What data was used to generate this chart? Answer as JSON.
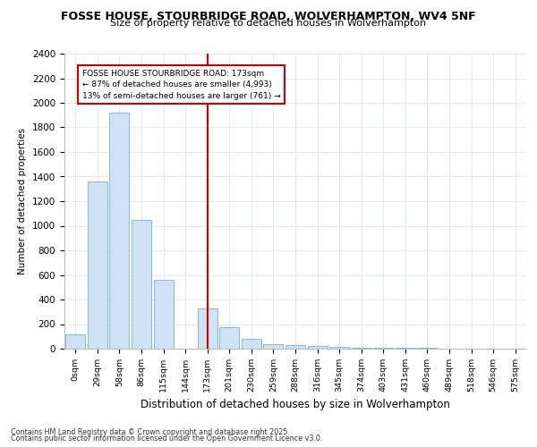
{
  "title": "FOSSE HOUSE, STOURBRIDGE ROAD, WOLVERHAMPTON, WV4 5NF",
  "subtitle": "Size of property relative to detached houses in Wolverhampton",
  "xlabel": "Distribution of detached houses by size in Wolverhampton",
  "ylabel": "Number of detached properties",
  "bar_labels": [
    "0sqm",
    "29sqm",
    "58sqm",
    "86sqm",
    "115sqm",
    "144sqm",
    "173sqm",
    "201sqm",
    "230sqm",
    "259sqm",
    "288sqm",
    "316sqm",
    "345sqm",
    "374sqm",
    "403sqm",
    "431sqm",
    "460sqm",
    "489sqm",
    "518sqm",
    "546sqm",
    "575sqm"
  ],
  "bar_values": [
    120,
    1360,
    1920,
    1050,
    560,
    0,
    330,
    175,
    80,
    40,
    30,
    20,
    15,
    10,
    8,
    5,
    5,
    3,
    0,
    2,
    2
  ],
  "bar_color": "#cfe2f3",
  "bar_edge_color": "#7aade0",
  "property_bin_index": 6,
  "annotation_title": "FOSSE HOUSE STOURBRIDGE ROAD: 173sqm",
  "annotation_line1": "← 87% of detached houses are smaller (4,993)",
  "annotation_line2": "13% of semi-detached houses are larger (761) →",
  "vline_color": "#cc0000",
  "annotation_border_color": "#cc0000",
  "ylim": [
    0,
    2400
  ],
  "yticks": [
    0,
    200,
    400,
    600,
    800,
    1000,
    1200,
    1400,
    1600,
    1800,
    2000,
    2200,
    2400
  ],
  "footer_line1": "Contains HM Land Registry data © Crown copyright and database right 2025.",
  "footer_line2": "Contains public sector information licensed under the Open Government Licence v3.0.",
  "background_color": "#ffffff",
  "grid_color": "#dce6f0"
}
